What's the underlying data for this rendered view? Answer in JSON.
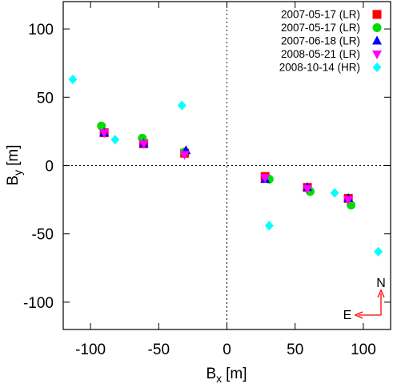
{
  "chart_data": {
    "type": "scatter",
    "xlabel": "B",
    "xlabel_sub": "x",
    "xlabel_unit": "[m]",
    "ylabel": "B",
    "ylabel_sub": "y",
    "ylabel_unit": "[m]",
    "xlim": [
      -120,
      120
    ],
    "ylim": [
      -120,
      120
    ],
    "xticks": [
      -100,
      -50,
      0,
      50,
      100
    ],
    "yticks": [
      -100,
      -50,
      0,
      50,
      100
    ],
    "grid": false,
    "zero_lines": true,
    "legend_position": "top-right",
    "series": [
      {
        "name": "2007-05-17 (LR)",
        "marker": "square",
        "color": "#ff0000",
        "points": [
          [
            -90,
            24
          ],
          [
            -61,
            16
          ],
          [
            -31,
            9
          ],
          [
            28,
            -8
          ],
          [
            59,
            -16
          ],
          [
            89,
            -24
          ]
        ]
      },
      {
        "name": "2007-05-17 (LR)",
        "marker": "circle",
        "color": "#00dd00",
        "points": [
          [
            -92,
            29
          ],
          [
            -62,
            20
          ],
          [
            -31,
            10
          ],
          [
            31,
            -10
          ],
          [
            61,
            -19
          ],
          [
            91,
            -29
          ]
        ]
      },
      {
        "name": "2007-06-18 (LR)",
        "marker": "triangle-up",
        "color": "#0000ff",
        "points": [
          [
            -90,
            24
          ],
          [
            -61,
            16
          ],
          [
            -30,
            11
          ],
          [
            28,
            -10
          ],
          [
            59,
            -16
          ],
          [
            89,
            -24
          ]
        ]
      },
      {
        "name": "2008-05-21 (LR)",
        "marker": "triangle-down",
        "color": "#ff00ff",
        "points": [
          [
            -90,
            24
          ],
          [
            -61,
            16
          ],
          [
            -31,
            8
          ],
          [
            28,
            -9
          ],
          [
            59,
            -17
          ],
          [
            89,
            -25
          ]
        ]
      },
      {
        "name": "2008-10-14 (HR)",
        "marker": "diamond",
        "color": "#00ffff",
        "points": [
          [
            -113,
            63
          ],
          [
            -82,
            19
          ],
          [
            -33,
            44
          ],
          [
            31,
            -44
          ],
          [
            79,
            -20
          ],
          [
            111,
            -63
          ]
        ]
      }
    ],
    "compass": {
      "north": "N",
      "east": "E",
      "color": "#ff0000"
    }
  }
}
